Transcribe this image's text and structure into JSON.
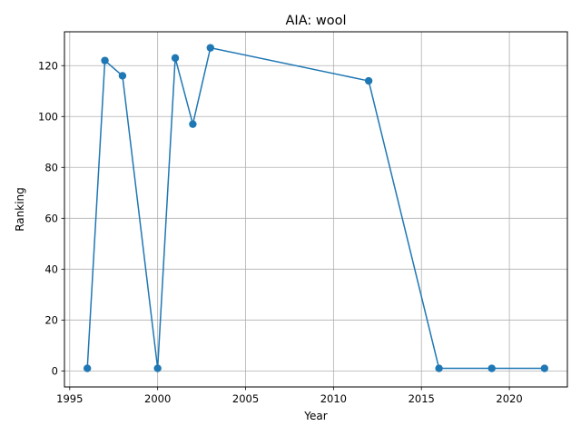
{
  "chart_data": {
    "type": "line",
    "title": "AIA: wool",
    "xlabel": "Year",
    "ylabel": "Ranking",
    "xlim": [
      1994.7,
      2023.3
    ],
    "ylim": [
      -6.3,
      133.3
    ],
    "xticks": [
      1995,
      2000,
      2005,
      2010,
      2015,
      2020
    ],
    "yticks": [
      0,
      20,
      40,
      60,
      80,
      100,
      120
    ],
    "grid": true,
    "series": [
      {
        "color": "#1f77b4",
        "x": [
          1996,
          1997,
          1998,
          2000,
          2001,
          2002,
          2003,
          2012,
          2016,
          2019,
          2022
        ],
        "y": [
          1,
          122,
          116,
          1,
          123,
          97,
          127,
          114,
          1,
          1,
          1
        ]
      }
    ]
  }
}
